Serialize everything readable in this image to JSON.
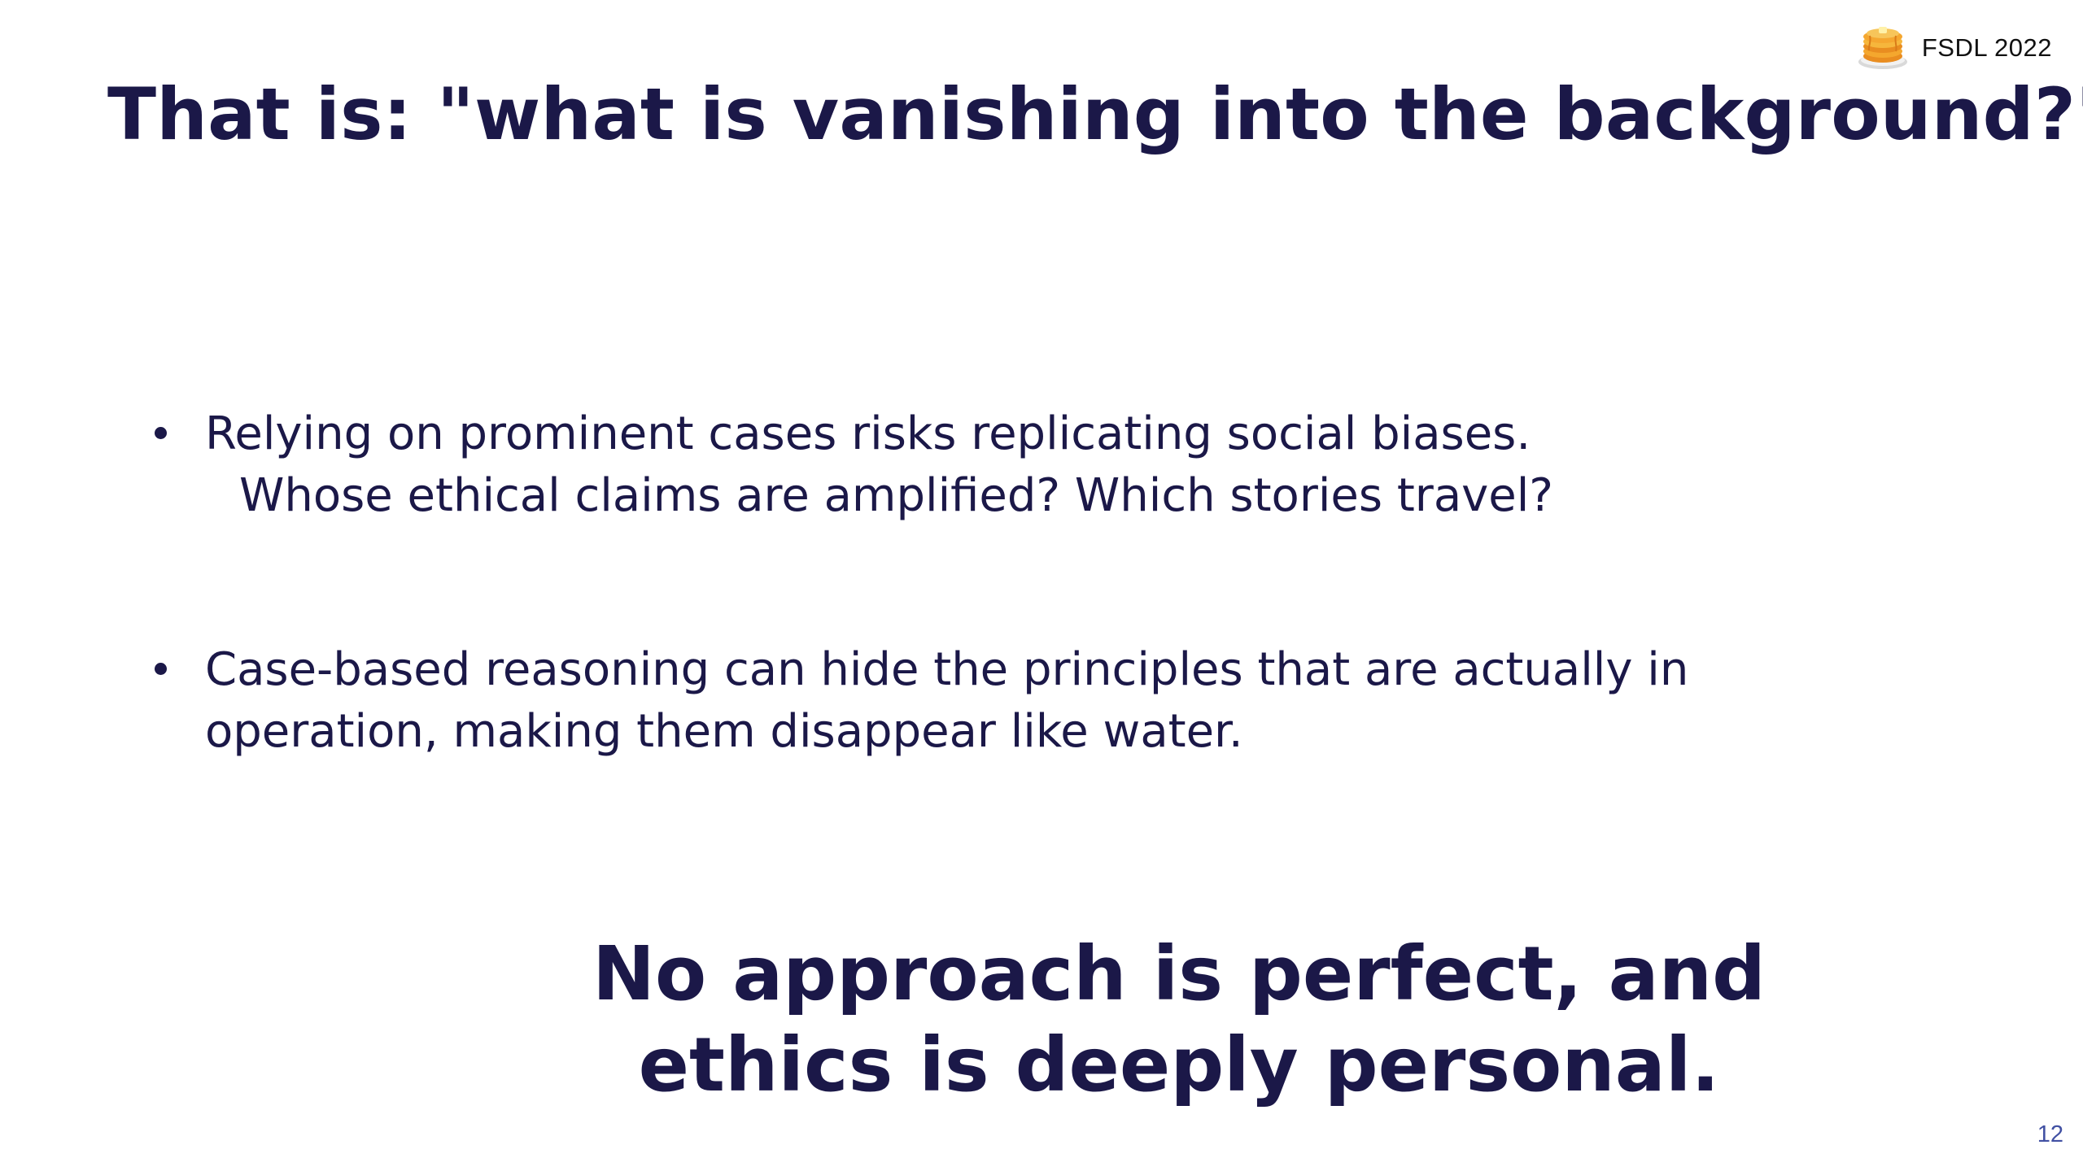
{
  "header": {
    "brand_label": "FSDL 2022",
    "logo_icon": "pancake-stack-icon"
  },
  "slide": {
    "title": "That is: \"what is vanishing into the background?\"",
    "bullets": [
      {
        "lines": [
          "Relying on prominent cases risks replicating social biases.",
          "Whose ethical claims are amplified? Which stories travel?"
        ]
      },
      {
        "lines": [
          "Case-based reasoning can hide the principles that are actually in",
          "operation, making them disappear like water."
        ]
      }
    ],
    "closing_lines": [
      "No approach is perfect, and",
      "ethics is deeply personal."
    ],
    "page_number": "12"
  },
  "colors": {
    "background": "#ffffff",
    "text_primary": "#1b1848",
    "brand_text": "#111111",
    "page_number": "#4150a3"
  }
}
